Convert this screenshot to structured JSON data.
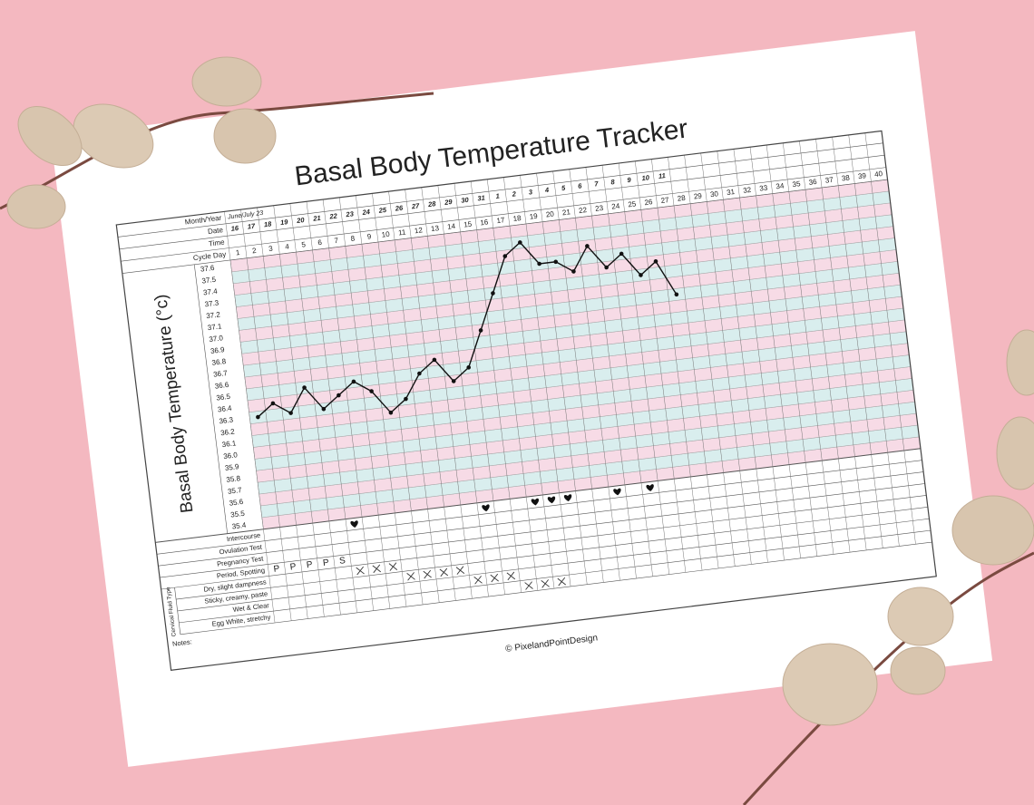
{
  "chart_data": {
    "type": "line",
    "title": "Basal Body Temperature Tracker",
    "y_label": "Basal Body Temperature (°c)",
    "row_labels": {
      "month_year": "Month/Year",
      "date": "Date",
      "time": "Time",
      "cycle_day": "Cycle Day",
      "intercourse": "Intercourse",
      "ovulation_test": "Ovulation Test",
      "pregnancy_test": "Pregnancy Test",
      "period": "Period, Spotting",
      "dry": "Dry, slight dampness",
      "sticky": "Sticky, creamy, paste",
      "wet": "Wet & Clear",
      "egg_white": "Egg White, stretchy",
      "cervical_fluid": "Cervical Fluid Type",
      "notes": "Notes:"
    },
    "month_year": "June/July 23",
    "dates": [
      16,
      17,
      18,
      19,
      20,
      21,
      22,
      23,
      24,
      25,
      26,
      27,
      28,
      29,
      30,
      31,
      1,
      2,
      3,
      4,
      5,
      6,
      7,
      8,
      9,
      10,
      11
    ],
    "categories": [
      1,
      2,
      3,
      4,
      5,
      6,
      7,
      8,
      9,
      10,
      11,
      12,
      13,
      14,
      15,
      16,
      17,
      18,
      19,
      20,
      21,
      22,
      23,
      24,
      25,
      26,
      27,
      28,
      29,
      30,
      31,
      32,
      33,
      34,
      35,
      36,
      37,
      38,
      39,
      40
    ],
    "values": [
      36.3,
      36.4,
      36.3,
      36.5,
      36.3,
      36.4,
      36.5,
      36.4,
      36.2,
      36.3,
      36.5,
      36.6,
      36.4,
      36.5,
      36.8,
      37.1,
      37.4,
      37.5,
      37.3,
      37.3,
      37.2,
      37.4,
      37.2,
      37.3,
      37.1,
      37.2,
      36.9,
      null,
      null,
      null,
      null,
      null,
      null,
      null,
      null,
      null,
      null,
      null,
      null,
      null
    ],
    "color": "#111111",
    "ylim": [
      35.35,
      37.65
    ],
    "yticks": [
      35.4,
      35.5,
      35.6,
      35.7,
      35.8,
      35.9,
      {
        "value": 36,
        "label": "36.0"
      },
      36.1,
      36.2,
      36.3,
      36.4,
      36.5,
      36.6,
      36.7,
      36.8,
      36.9,
      {
        "value": 37,
        "label": "37.0"
      },
      37.1,
      37.2,
      37.3,
      37.4,
      37.5,
      37.6
    ],
    "grid": true,
    "band_colors": [
      "#f7dbe6",
      "#d9eeee"
    ],
    "intercourse_days": [
      6,
      14,
      17,
      18,
      19,
      22,
      24
    ],
    "period": {
      "days": [
        1,
        2,
        3,
        4,
        5
      ],
      "labels": [
        "P",
        "P",
        "P",
        "P",
        "S"
      ]
    },
    "cervical_fluid": {
      "dry": [
        6,
        7,
        8
      ],
      "sticky": [
        9,
        10,
        11,
        12
      ],
      "wet": [
        13,
        14,
        15
      ],
      "egg_white": [
        16,
        17,
        18
      ]
    },
    "copyright": "© PixelandPointDesign"
  }
}
